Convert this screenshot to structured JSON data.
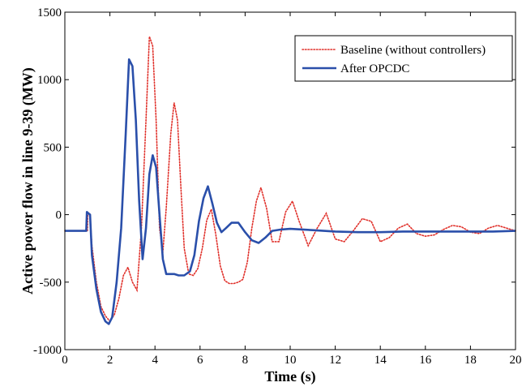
{
  "chart_data": {
    "type": "line",
    "title": "",
    "xlabel": "Time (s)",
    "ylabel": "Active power flow in line 9-39 (MW)",
    "xlim": [
      0,
      20
    ],
    "ylim": [
      -1000,
      1500
    ],
    "xticks": [
      0,
      2,
      4,
      6,
      8,
      10,
      12,
      14,
      16,
      18,
      20
    ],
    "yticks": [
      -1000,
      -500,
      0,
      500,
      1000,
      1500
    ],
    "grid": false,
    "legend_position": "top-right",
    "series": [
      {
        "name": "Baseline (without controllers)",
        "color": "#e0302a",
        "style": "dotted",
        "x": [
          0,
          1.0,
          1.02,
          1.08,
          1.12,
          1.2,
          1.4,
          1.6,
          1.8,
          2.0,
          2.2,
          2.4,
          2.6,
          2.8,
          3.0,
          3.2,
          3.4,
          3.6,
          3.75,
          3.9,
          4.05,
          4.2,
          4.35,
          4.5,
          4.7,
          4.85,
          5.0,
          5.15,
          5.3,
          5.5,
          5.7,
          5.9,
          6.1,
          6.3,
          6.5,
          6.7,
          6.9,
          7.1,
          7.3,
          7.5,
          7.7,
          7.9,
          8.1,
          8.3,
          8.5,
          8.7,
          8.95,
          9.2,
          9.5,
          9.8,
          10.1,
          10.4,
          10.8,
          11.2,
          11.6,
          12.0,
          12.4,
          12.8,
          13.2,
          13.6,
          14.0,
          14.4,
          14.8,
          15.2,
          15.6,
          16.0,
          16.4,
          16.8,
          17.2,
          17.6,
          18.0,
          18.4,
          18.8,
          19.2,
          19.6,
          20.0
        ],
        "values": [
          -120,
          -120,
          15,
          10,
          0,
          -230,
          -500,
          -680,
          -750,
          -790,
          -740,
          -620,
          -450,
          -390,
          -500,
          -560,
          -100,
          700,
          1320,
          1250,
          700,
          -100,
          -280,
          50,
          600,
          830,
          700,
          200,
          -250,
          -440,
          -450,
          -400,
          -250,
          -40,
          40,
          -150,
          -380,
          -490,
          -510,
          -510,
          -500,
          -480,
          -350,
          -100,
          100,
          200,
          50,
          -200,
          -200,
          20,
          100,
          -50,
          -230,
          -100,
          10,
          -180,
          -200,
          -120,
          -30,
          -50,
          -200,
          -170,
          -100,
          -70,
          -140,
          -160,
          -150,
          -110,
          -80,
          -90,
          -130,
          -140,
          -100,
          -80,
          -100,
          -120
        ]
      },
      {
        "name": "After OPCDC",
        "color": "#2a4faa",
        "style": "solid",
        "x": [
          0,
          0.95,
          0.98,
          1.08,
          1.12,
          1.2,
          1.4,
          1.6,
          1.8,
          1.95,
          2.1,
          2.3,
          2.5,
          2.7,
          2.85,
          3.0,
          3.15,
          3.3,
          3.45,
          3.6,
          3.75,
          3.9,
          4.05,
          4.2,
          4.35,
          4.5,
          4.65,
          4.85,
          5.05,
          5.3,
          5.55,
          5.75,
          5.95,
          6.15,
          6.35,
          6.55,
          6.75,
          6.95,
          7.15,
          7.4,
          7.7,
          8.0,
          8.3,
          8.6,
          8.9,
          9.2,
          9.6,
          10.0,
          11.0,
          12.0,
          13.0,
          14.0,
          15.0,
          16.0,
          17.0,
          18.0,
          19.0,
          20.0
        ],
        "values": [
          -120,
          -120,
          20,
          5,
          0,
          -300,
          -550,
          -720,
          -790,
          -810,
          -760,
          -500,
          -100,
          600,
          1150,
          1100,
          700,
          100,
          -330,
          -100,
          300,
          440,
          350,
          0,
          -330,
          -440,
          -440,
          -440,
          -450,
          -450,
          -420,
          -300,
          -50,
          120,
          210,
          80,
          -60,
          -130,
          -100,
          -60,
          -60,
          -130,
          -190,
          -210,
          -170,
          -120,
          -110,
          -105,
          -115,
          -125,
          -130,
          -130,
          -125,
          -125,
          -125,
          -125,
          -125,
          -120
        ]
      }
    ]
  }
}
